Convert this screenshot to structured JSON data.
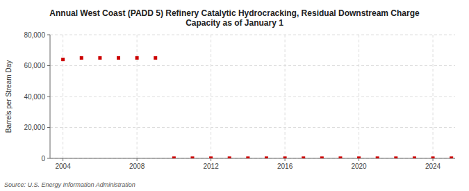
{
  "chart_data": {
    "type": "scatter",
    "title": "Annual West Coast (PADD 5) Refinery Catalytic Hydrocracking, Residual Downstream Charge\nCapacity as of January 1",
    "y_label": "Barrels per Stream Day",
    "source": "Source: U.S. Energy Information Administration",
    "color": "#cc0000",
    "marker": "square",
    "grid": true,
    "xlim": [
      2003.3,
      2025.2
    ],
    "ylim": [
      0,
      80000
    ],
    "xticks": [
      2004,
      2008,
      2012,
      2016,
      2020,
      2024
    ],
    "yticks": [
      0,
      {
        "value": 20000,
        "label": "20,000"
      },
      {
        "value": 40000,
        "label": "40,000"
      },
      {
        "value": 60000,
        "label": "60,000"
      },
      {
        "value": 80000,
        "label": "80,000"
      }
    ],
    "x": [
      2004,
      2005,
      2006,
      2007,
      2008,
      2009,
      2010,
      2011,
      2012,
      2013,
      2014,
      2015,
      2016,
      2017,
      2018,
      2019,
      2020,
      2021,
      2022,
      2023,
      2024,
      2025
    ],
    "values": [
      64000,
      65000,
      65000,
      65000,
      65000,
      65000,
      100,
      100,
      100,
      100,
      100,
      100,
      100,
      100,
      100,
      100,
      100,
      100,
      100,
      100,
      100,
      100
    ]
  }
}
